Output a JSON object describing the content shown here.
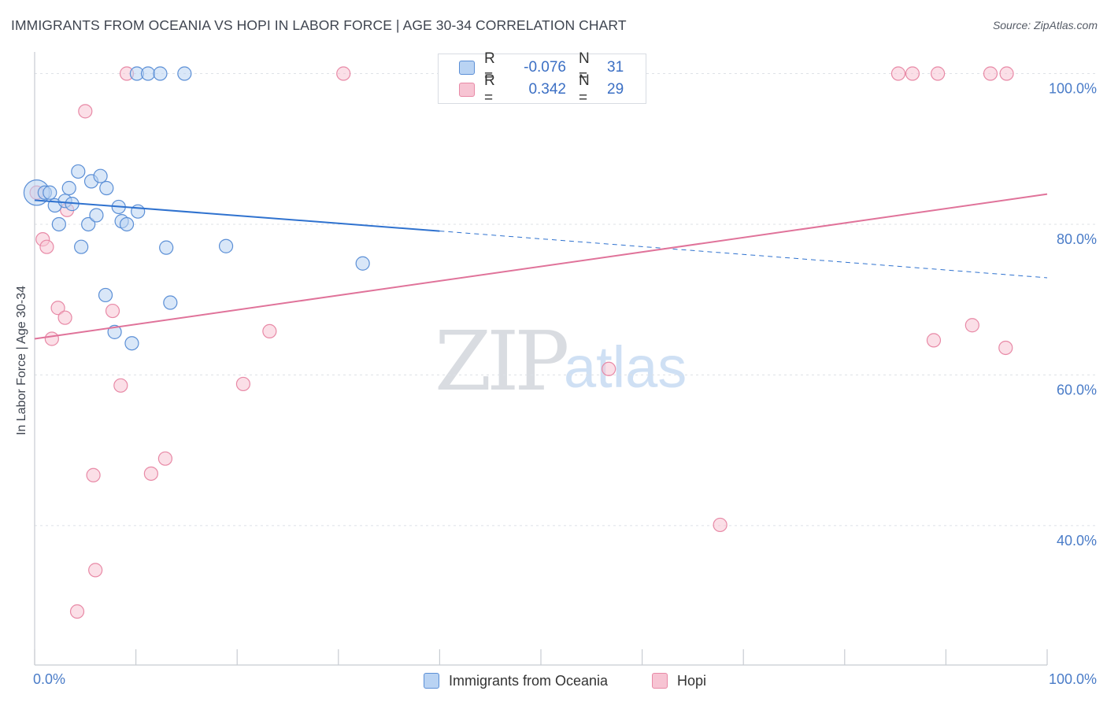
{
  "header": {
    "title": "IMMIGRANTS FROM OCEANIA VS HOPI IN LABOR FORCE | AGE 30-34 CORRELATION CHART",
    "source": "Source: ZipAtlas.com"
  },
  "watermark": {
    "zip": "ZIP",
    "atlas": "atlas"
  },
  "legend_top": {
    "rows": [
      {
        "r_label": "R =",
        "r_value": "-0.076",
        "n_label": "N =",
        "n_value": "31"
      },
      {
        "r_label": "R =",
        "r_value": "0.342",
        "n_label": "N =",
        "n_value": "29"
      }
    ]
  },
  "legend_bottom": {
    "items": [
      {
        "label": "Immigrants from Oceania"
      },
      {
        "label": "Hopi"
      }
    ]
  },
  "colors": {
    "blue_fill": "#b9d3f3",
    "blue_stroke": "#5b8fd6",
    "blue_line": "#2f72cf",
    "pink_fill": "#f7c4d3",
    "pink_stroke": "#e889a6",
    "pink_line": "#e0739a",
    "tick_text": "#4a7cc8",
    "grid": "#dde1e6"
  },
  "chart_data": {
    "type": "scatter",
    "title": "IMMIGRANTS FROM OCEANIA VS HOPI IN LABOR FORCE | AGE 30-34 CORRELATION CHART",
    "xlabel": "",
    "ylabel": "In Labor Force | Age 30-34",
    "xlim": [
      0,
      100
    ],
    "ylim": [
      21.5,
      103.5
    ],
    "x_tick_labels": [
      "0.0%",
      "100.0%"
    ],
    "y_ticks": [
      40,
      60,
      80,
      100
    ],
    "y_tick_labels": [
      "40.0%",
      "60.0%",
      "80.0%",
      "100.0%"
    ],
    "grid": true,
    "legend_position": "top-center",
    "series": [
      {
        "name": "Immigrants from Oceania",
        "color": "#5b8fd6",
        "points": [
          [
            0.2,
            84.2,
            3
          ],
          [
            1.0,
            84.2,
            1
          ],
          [
            1.5,
            84.2,
            1
          ],
          [
            2.0,
            82.5,
            1
          ],
          [
            2.4,
            80.0,
            1
          ],
          [
            3.0,
            83.1,
            1
          ],
          [
            3.4,
            84.8,
            1
          ],
          [
            3.7,
            82.7,
            1
          ],
          [
            4.3,
            87.0,
            1
          ],
          [
            4.6,
            77.0,
            1
          ],
          [
            5.3,
            80.0,
            1
          ],
          [
            5.6,
            85.7,
            1
          ],
          [
            6.1,
            81.2,
            1
          ],
          [
            6.5,
            86.4,
            1
          ],
          [
            7.1,
            84.8,
            1
          ],
          [
            7.0,
            70.6,
            1
          ],
          [
            7.9,
            65.7,
            1
          ],
          [
            8.3,
            82.3,
            1
          ],
          [
            8.6,
            80.4,
            1
          ],
          [
            9.1,
            80.0,
            1
          ],
          [
            9.6,
            64.2,
            1
          ],
          [
            10.2,
            81.7,
            1
          ],
          [
            10.1,
            100.0,
            1
          ],
          [
            11.2,
            100.0,
            1
          ],
          [
            12.4,
            100.0,
            1
          ],
          [
            13.0,
            76.9,
            1
          ],
          [
            13.4,
            69.6,
            1
          ],
          [
            14.8,
            100.0,
            1
          ],
          [
            18.9,
            77.1,
            1
          ],
          [
            32.4,
            74.8,
            1
          ]
        ],
        "trend": {
          "solid_x": [
            0,
            40
          ],
          "dashed_x": [
            40,
            100
          ],
          "y_at_x0": 83.2,
          "y_at_x40": 79.1,
          "y_at_x100": 72.9
        }
      },
      {
        "name": "Hopi",
        "color": "#e889a6",
        "points": [
          [
            0.2,
            84.2,
            1
          ],
          [
            0.8,
            78.0,
            1
          ],
          [
            1.2,
            77.0,
            1
          ],
          [
            1.7,
            64.8,
            1
          ],
          [
            2.3,
            68.9,
            1
          ],
          [
            3.0,
            67.6,
            1
          ],
          [
            3.2,
            81.9,
            1
          ],
          [
            4.2,
            28.6,
            1
          ],
          [
            5.0,
            95.0,
            1
          ],
          [
            5.8,
            46.7,
            1
          ],
          [
            6.0,
            34.1,
            1
          ],
          [
            7.7,
            68.5,
            1
          ],
          [
            8.5,
            58.6,
            1
          ],
          [
            9.1,
            100.0,
            1
          ],
          [
            11.5,
            46.9,
            1
          ],
          [
            12.9,
            48.9,
            1
          ],
          [
            20.6,
            58.8,
            1
          ],
          [
            23.2,
            65.8,
            1
          ],
          [
            30.5,
            100.0,
            1
          ],
          [
            56.7,
            60.8,
            1
          ],
          [
            67.7,
            40.1,
            1
          ],
          [
            85.3,
            100.0,
            1
          ],
          [
            86.7,
            100.0,
            1
          ],
          [
            88.8,
            64.6,
            1
          ],
          [
            89.2,
            100.0,
            1
          ],
          [
            92.6,
            66.6,
            1
          ],
          [
            94.4,
            100.0,
            1
          ],
          [
            95.9,
            63.6,
            1
          ],
          [
            96.0,
            100.0,
            1
          ]
        ],
        "trend": {
          "solid_x": [
            0,
            100
          ],
          "y_at_x0": 64.8,
          "y_at_x100": 84.0
        }
      }
    ]
  }
}
